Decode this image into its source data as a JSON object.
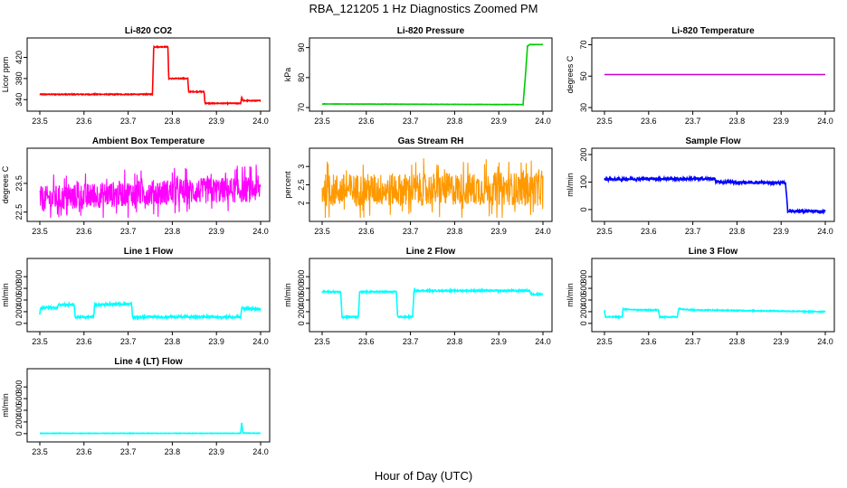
{
  "title": "RBA_121205  1 Hz Diagnostics Zoomed PM",
  "xlabel": "Hour of Day (UTC)",
  "chart_data": [
    {
      "type": "line",
      "title": "Li-820 CO2",
      "ylabel": "Licor ppm",
      "color": "#ff0000",
      "xlim": [
        23.5,
        24.0
      ],
      "xticks": [
        "23.5",
        "23.6",
        "23.7",
        "23.8",
        "23.9",
        "24.0"
      ],
      "ylim": [
        325,
        450
      ],
      "yticks": [
        340,
        380,
        420
      ],
      "mode": "step",
      "noise": 0.8,
      "segments": [
        [
          23.5,
          350
        ],
        [
          23.755,
          350
        ],
        [
          23.758,
          440
        ],
        [
          23.79,
          440
        ],
        [
          23.792,
          380
        ],
        [
          23.835,
          380
        ],
        [
          23.837,
          355
        ],
        [
          23.872,
          355
        ],
        [
          23.874,
          333
        ],
        [
          23.955,
          333
        ],
        [
          23.957,
          345
        ],
        [
          23.96,
          338
        ],
        [
          24.0,
          338
        ]
      ]
    },
    {
      "type": "line",
      "title": "Li-820 Pressure",
      "ylabel": "kPa",
      "color": "#00cc00",
      "xlim": [
        23.5,
        24.0
      ],
      "xticks": [
        "23.5",
        "23.6",
        "23.7",
        "23.8",
        "23.9",
        "24.0"
      ],
      "ylim": [
        70,
        92
      ],
      "yticks": [
        70,
        80,
        90
      ],
      "mode": "step",
      "noise": 0.05,
      "segments": [
        [
          23.5,
          71.2
        ],
        [
          23.94,
          71.0
        ],
        [
          23.955,
          71.0
        ],
        [
          23.96,
          80
        ],
        [
          23.965,
          90.5
        ],
        [
          23.97,
          91
        ],
        [
          24.0,
          91
        ]
      ]
    },
    {
      "type": "line",
      "title": "Li-820 Temperature",
      "ylabel": "degrees C",
      "color": "#cc00cc",
      "xlim": [
        23.5,
        24.0
      ],
      "xticks": [
        "23.5",
        "23.6",
        "23.7",
        "23.8",
        "23.9",
        "24.0"
      ],
      "ylim": [
        30,
        72
      ],
      "yticks": [
        30,
        50,
        70
      ],
      "mode": "step",
      "noise": 0,
      "segments": [
        [
          23.5,
          51
        ],
        [
          24.0,
          51
        ]
      ]
    },
    {
      "type": "line",
      "title": "Ambient Box Temperature",
      "ylabel": "degrees C",
      "color": "#ff00ff",
      "xlim": [
        23.5,
        24.0
      ],
      "xticks": [
        "23.5",
        "23.6",
        "23.7",
        "23.8",
        "23.9",
        "24.0"
      ],
      "ylim": [
        22.3,
        24.6
      ],
      "yticks": [
        22.5,
        23.5
      ],
      "mode": "noisy",
      "noise": 0.45,
      "segments": [
        [
          23.5,
          22.95
        ],
        [
          23.7,
          23.15
        ],
        [
          24.0,
          23.3
        ]
      ]
    },
    {
      "type": "line",
      "title": "Gas Stream RH",
      "ylabel": "percent",
      "color": "#ff9900",
      "xlim": [
        23.5,
        24.0
      ],
      "xticks": [
        "23.5",
        "23.6",
        "23.7",
        "23.8",
        "23.9",
        "24.0"
      ],
      "ylim": [
        1.6,
        3.4
      ],
      "yticks": [
        2.0,
        2.5,
        3.0
      ],
      "mode": "noisy",
      "noise": 0.45,
      "segments": [
        [
          23.5,
          2.35
        ],
        [
          24.0,
          2.4
        ]
      ]
    },
    {
      "type": "line",
      "title": "Sample Flow",
      "ylabel": "ml/min",
      "color": "#0000ff",
      "xlim": [
        23.5,
        24.0
      ],
      "xticks": [
        "23.5",
        "23.6",
        "23.7",
        "23.8",
        "23.9",
        "24.0"
      ],
      "ylim": [
        -30,
        210
      ],
      "yticks": [
        0,
        100,
        200
      ],
      "mode": "step",
      "noise": 5,
      "segments": [
        [
          23.5,
          110
        ],
        [
          23.6,
          112
        ],
        [
          23.75,
          112
        ],
        [
          23.752,
          100
        ],
        [
          23.91,
          97
        ],
        [
          23.915,
          -5
        ],
        [
          24.0,
          -8
        ]
      ]
    },
    {
      "type": "line",
      "title": "Line 1 Flow",
      "ylabel": "ml/min",
      "color": "#00ffff",
      "xlim": [
        23.5,
        24.0
      ],
      "xticks": [
        "23.5",
        "23.6",
        "23.7",
        "23.8",
        "23.9",
        "24.0"
      ],
      "ylim": [
        -80,
        1050
      ],
      "yticks": [
        0,
        200,
        400,
        600,
        800
      ],
      "mode": "step",
      "noise": 18,
      "segments": [
        [
          23.5,
          150
        ],
        [
          23.502,
          270
        ],
        [
          23.54,
          270
        ],
        [
          23.542,
          320
        ],
        [
          23.578,
          320
        ],
        [
          23.58,
          110
        ],
        [
          23.622,
          110
        ],
        [
          23.624,
          320
        ],
        [
          23.65,
          320
        ],
        [
          23.652,
          330
        ],
        [
          23.708,
          330
        ],
        [
          23.71,
          100
        ],
        [
          23.74,
          110
        ],
        [
          23.955,
          110
        ],
        [
          23.957,
          260
        ],
        [
          24.0,
          240
        ]
      ]
    },
    {
      "type": "line",
      "title": "Line 2 Flow",
      "ylabel": "ml/min",
      "color": "#00ffff",
      "xlim": [
        23.5,
        24.0
      ],
      "xticks": [
        "23.5",
        "23.6",
        "23.7",
        "23.8",
        "23.9",
        "24.0"
      ],
      "ylim": [
        -80,
        1050
      ],
      "yticks": [
        0,
        200,
        400,
        600,
        800
      ],
      "mode": "step",
      "noise": 12,
      "segments": [
        [
          23.5,
          540
        ],
        [
          23.542,
          540
        ],
        [
          23.545,
          110
        ],
        [
          23.582,
          110
        ],
        [
          23.585,
          540
        ],
        [
          23.668,
          540
        ],
        [
          23.671,
          110
        ],
        [
          23.705,
          110
        ],
        [
          23.708,
          560
        ],
        [
          23.97,
          560
        ],
        [
          23.972,
          500
        ],
        [
          24.0,
          500
        ]
      ]
    },
    {
      "type": "line",
      "title": "Line 3 Flow",
      "ylabel": "ml/min",
      "color": "#00ffff",
      "xlim": [
        23.5,
        24.0
      ],
      "xticks": [
        "23.5",
        "23.6",
        "23.7",
        "23.8",
        "23.9",
        "24.0"
      ],
      "ylim": [
        -80,
        1050
      ],
      "yticks": [
        0,
        200,
        400,
        600,
        800
      ],
      "mode": "step",
      "noise": 8,
      "segments": [
        [
          23.5,
          220
        ],
        [
          23.502,
          110
        ],
        [
          23.54,
          110
        ],
        [
          23.542,
          240
        ],
        [
          23.585,
          230
        ],
        [
          23.622,
          230
        ],
        [
          23.625,
          110
        ],
        [
          23.665,
          110
        ],
        [
          23.668,
          250
        ],
        [
          23.7,
          230
        ],
        [
          24.0,
          200
        ]
      ]
    },
    {
      "type": "line",
      "title": "Line 4 (LT) Flow",
      "ylabel": "ml/min",
      "color": "#00ffff",
      "xlim": [
        23.5,
        24.0
      ],
      "xticks": [
        "23.5",
        "23.6",
        "23.7",
        "23.8",
        "23.9",
        "24.0"
      ],
      "ylim": [
        -80,
        1050
      ],
      "yticks": [
        0,
        200,
        400,
        600,
        800
      ],
      "mode": "step",
      "noise": 4,
      "segments": [
        [
          23.5,
          5
        ],
        [
          23.955,
          5
        ],
        [
          23.957,
          190
        ],
        [
          23.96,
          10
        ],
        [
          24.0,
          5
        ]
      ]
    }
  ]
}
